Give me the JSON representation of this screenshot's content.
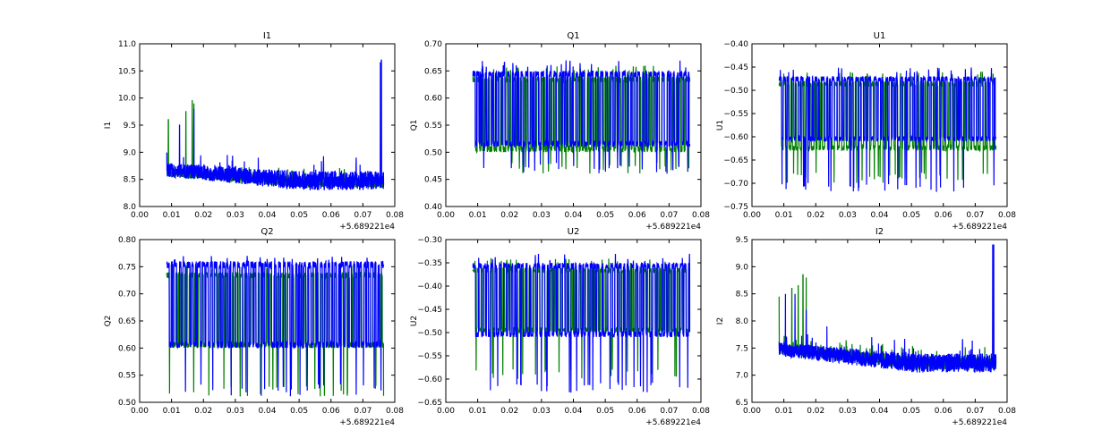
{
  "chart_data": [
    {
      "type": "line",
      "title": "I1",
      "ylabel": "I1",
      "xlim": [
        0.0,
        0.08
      ],
      "ylim": [
        8.0,
        11.0
      ],
      "xticks": [
        "0.00",
        "0.01",
        "0.02",
        "0.03",
        "0.04",
        "0.05",
        "0.06",
        "0.07",
        "0.08"
      ],
      "yticks": [
        "8.0",
        "8.5",
        "9.0",
        "9.5",
        "10.0",
        "10.5",
        "11.0"
      ],
      "x_offset_label": "+5.689221e4",
      "x_range": [
        0.0085,
        0.0765
      ],
      "series": [
        {
          "color": "#008000",
          "base_lo": 8.55,
          "base_hi": 8.7,
          "end_lo": 8.35,
          "end_hi": 8.55,
          "spikes": [
            [
              0.009,
              9.6
            ],
            [
              0.0145,
              9.75
            ],
            [
              0.0165,
              9.95
            ],
            [
              0.017,
              9.9
            ]
          ]
        },
        {
          "color": "#0000ff",
          "base_lo": 8.55,
          "base_hi": 8.8,
          "end_lo": 8.3,
          "end_hi": 8.65,
          "spikes": [
            [
              0.0125,
              9.5
            ],
            [
              0.017,
              9.8
            ],
            [
              0.0275,
              8.95
            ],
            [
              0.0755,
              10.65
            ],
            [
              0.0758,
              10.7
            ]
          ]
        }
      ]
    },
    {
      "type": "line",
      "title": "Q1",
      "ylabel": "Q1",
      "xlim": [
        0.0,
        0.08
      ],
      "ylim": [
        0.4,
        0.7
      ],
      "xticks": [
        "0.00",
        "0.01",
        "0.02",
        "0.03",
        "0.04",
        "0.05",
        "0.06",
        "0.07",
        "0.08"
      ],
      "yticks": [
        "0.40",
        "0.45",
        "0.50",
        "0.55",
        "0.60",
        "0.65",
        "0.70"
      ],
      "x_offset_label": "+5.689221e4",
      "x_range": [
        0.0085,
        0.0765
      ],
      "series": [
        {
          "color": "#008000",
          "lo": 0.5,
          "hi": 0.64,
          "dip_lo": 0.46,
          "peak_hi": 0.66
        },
        {
          "color": "#0000ff",
          "lo": 0.51,
          "hi": 0.65,
          "dip_lo": 0.46,
          "peak_hi": 0.67
        }
      ]
    },
    {
      "type": "line",
      "title": "U1",
      "ylabel": "U1",
      "xlim": [
        0.0,
        0.08
      ],
      "ylim": [
        -0.75,
        -0.4
      ],
      "xticks": [
        "0.00",
        "0.01",
        "0.02",
        "0.03",
        "0.04",
        "0.05",
        "0.06",
        "0.07",
        "0.08"
      ],
      "yticks": [
        "−0.75",
        "−0.70",
        "−0.65",
        "−0.60",
        "−0.55",
        "−0.50",
        "−0.45",
        "−0.40"
      ],
      "x_offset_label": "+5.689221e4",
      "x_range": [
        0.0085,
        0.0765
      ],
      "series": [
        {
          "color": "#008000",
          "lo": -0.63,
          "hi": -0.48,
          "dip_lo": -0.7,
          "peak_hi": -0.46
        },
        {
          "color": "#0000ff",
          "lo": -0.61,
          "hi": -0.47,
          "dip_lo": -0.72,
          "peak_hi": -0.45
        }
      ]
    },
    {
      "type": "line",
      "title": "Q2",
      "ylabel": "Q2",
      "xlim": [
        0.0,
        0.08
      ],
      "ylim": [
        0.5,
        0.8
      ],
      "xticks": [
        "0.00",
        "0.01",
        "0.02",
        "0.03",
        "0.04",
        "0.05",
        "0.06",
        "0.07",
        "0.08"
      ],
      "yticks": [
        "0.50",
        "0.55",
        "0.60",
        "0.65",
        "0.70",
        "0.75",
        "0.80"
      ],
      "x_offset_label": "+5.689221e4",
      "x_range": [
        0.0085,
        0.0765
      ],
      "series": [
        {
          "color": "#008000",
          "lo": 0.6,
          "hi": 0.74,
          "dip_lo": 0.51,
          "peak_hi": 0.76
        },
        {
          "color": "#0000ff",
          "lo": 0.6,
          "hi": 0.76,
          "dip_lo": 0.51,
          "peak_hi": 0.77
        }
      ]
    },
    {
      "type": "line",
      "title": "U2",
      "ylabel": "U2",
      "xlim": [
        0.0,
        0.08
      ],
      "ylim": [
        -0.65,
        -0.3
      ],
      "xticks": [
        "0.00",
        "0.01",
        "0.02",
        "0.03",
        "0.04",
        "0.05",
        "0.06",
        "0.07",
        "0.08"
      ],
      "yticks": [
        "−0.65",
        "−0.60",
        "−0.55",
        "−0.50",
        "−0.45",
        "−0.40",
        "−0.35",
        "−0.30"
      ],
      "x_offset_label": "+5.689221e4",
      "x_range": [
        0.0085,
        0.0765
      ],
      "series": [
        {
          "color": "#008000",
          "lo": -0.5,
          "hi": -0.36,
          "dip_lo": -0.6,
          "peak_hi": -0.34
        },
        {
          "color": "#0000ff",
          "lo": -0.51,
          "hi": -0.35,
          "dip_lo": -0.63,
          "peak_hi": -0.33
        }
      ]
    },
    {
      "type": "line",
      "title": "I2",
      "ylabel": "I2",
      "xlim": [
        0.0,
        0.08
      ],
      "ylim": [
        6.5,
        9.5
      ],
      "xticks": [
        "0.00",
        "0.01",
        "0.02",
        "0.03",
        "0.04",
        "0.05",
        "0.06",
        "0.07",
        "0.08"
      ],
      "yticks": [
        "6.5",
        "7.0",
        "7.5",
        "8.0",
        "8.5",
        "9.0",
        "9.5"
      ],
      "x_offset_label": "+5.689221e4",
      "x_range": [
        0.0085,
        0.0765
      ],
      "series": [
        {
          "color": "#008000",
          "base_lo": 7.4,
          "base_hi": 7.6,
          "end_lo": 7.1,
          "end_hi": 7.35,
          "spikes": [
            [
              0.0085,
              8.45
            ],
            [
              0.0125,
              8.6
            ],
            [
              0.0145,
              8.65
            ],
            [
              0.016,
              8.85
            ],
            [
              0.017,
              8.8
            ]
          ]
        },
        {
          "color": "#0000ff",
          "base_lo": 7.35,
          "base_hi": 7.6,
          "end_lo": 7.05,
          "end_hi": 7.4,
          "spikes": [
            [
              0.0105,
              8.5
            ],
            [
              0.0135,
              8.5
            ],
            [
              0.017,
              8.2
            ],
            [
              0.0235,
              7.9
            ],
            [
              0.0755,
              9.4
            ],
            [
              0.0758,
              9.4
            ]
          ]
        }
      ]
    }
  ]
}
